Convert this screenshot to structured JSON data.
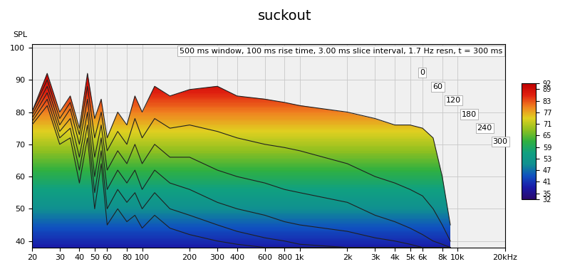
{
  "chart_data": {
    "type": "waterfall",
    "title": "suckout",
    "y_label": "SPL",
    "annotation": "500 ms window, 100 ms rise time, 3.00 ms slice interval, 1.7 Hz resn, t = 300 ms",
    "x": [
      20,
      25,
      30,
      35,
      40,
      45,
      50,
      55,
      60,
      70,
      80,
      90,
      100,
      120,
      150,
      200,
      300,
      400,
      600,
      800,
      1000,
      2000,
      3000,
      4000,
      5000,
      6000,
      7000,
      8000,
      9000
    ],
    "series": [
      {
        "name": "0",
        "values": [
          80,
          92,
          80,
          85,
          75,
          92,
          78,
          84,
          72,
          80,
          76,
          85,
          80,
          88,
          85,
          87,
          88,
          85,
          84,
          83,
          82,
          80,
          78,
          76,
          76,
          75,
          72,
          60,
          45
        ]
      },
      {
        "name": "60",
        "values": [
          80,
          90,
          78,
          83,
          73,
          88,
          72,
          80,
          68,
          74,
          70,
          78,
          72,
          78,
          75,
          76,
          74,
          72,
          70,
          69,
          68,
          64,
          60,
          58,
          56,
          54,
          50,
          45,
          40
        ]
      },
      {
        "name": "120",
        "values": [
          79,
          88,
          76,
          81,
          70,
          84,
          66,
          76,
          62,
          68,
          64,
          70,
          64,
          70,
          66,
          66,
          62,
          60,
          58,
          56,
          55,
          52,
          48,
          46,
          44,
          42,
          40,
          39,
          38
        ]
      },
      {
        "name": "180",
        "values": [
          78,
          86,
          74,
          78,
          66,
          80,
          60,
          72,
          56,
          62,
          58,
          62,
          56,
          62,
          58,
          56,
          52,
          50,
          48,
          46,
          45,
          43,
          41,
          40,
          39,
          38,
          38,
          38,
          38
        ]
      },
      {
        "name": "240",
        "values": [
          77,
          84,
          72,
          75,
          62,
          76,
          55,
          68,
          50,
          56,
          52,
          55,
          50,
          55,
          50,
          48,
          45,
          43,
          41,
          40,
          39,
          38,
          38,
          38,
          38,
          38,
          38,
          38,
          38
        ]
      },
      {
        "name": "300",
        "values": [
          76,
          82,
          70,
          72,
          58,
          72,
          50,
          64,
          45,
          50,
          46,
          48,
          44,
          48,
          44,
          42,
          40,
          39,
          38,
          38,
          38,
          38,
          38,
          38,
          38,
          38,
          38,
          38,
          38
        ]
      }
    ],
    "log": "x",
    "xlim": [
      20,
      20000
    ],
    "xticks": [
      20,
      30,
      40,
      50,
      60,
      80,
      100,
      200,
      300,
      400,
      600,
      800,
      {
        "value": 1000,
        "label": "1k"
      },
      {
        "value": 2000,
        "label": "2k"
      },
      {
        "value": 3000,
        "label": "3k"
      },
      {
        "value": 4000,
        "label": "4k"
      },
      {
        "value": 5000,
        "label": "5k"
      },
      {
        "value": 6000,
        "label": "6k"
      },
      {
        "value": 8000,
        "label": "8k"
      },
      {
        "value": 10000,
        "label": "10k"
      },
      {
        "value": 20000,
        "label": "20kHz"
      }
    ],
    "ylim": [
      38,
      101
    ],
    "yticks": [
      40,
      50,
      60,
      70,
      80,
      90,
      100
    ],
    "grid": true,
    "colorbar_range": [
      32,
      92
    ],
    "colorbar_ticks": [
      32,
      35,
      41,
      47,
      53,
      59,
      65,
      71,
      77,
      83,
      89,
      92
    ]
  }
}
